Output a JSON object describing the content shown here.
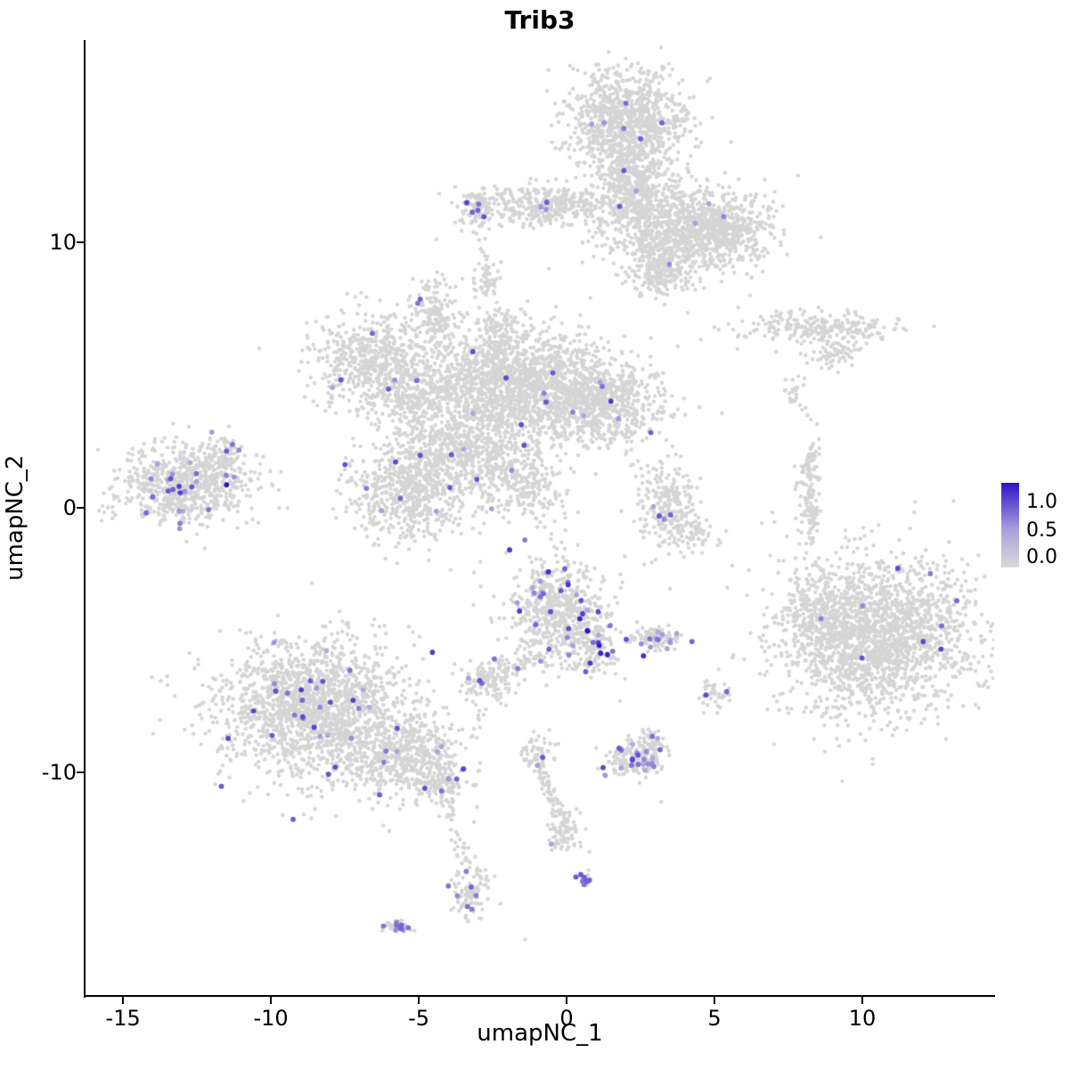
{
  "chart_data": {
    "type": "scatter",
    "title": "Trib3",
    "xlabel": "umapNC_1",
    "ylabel": "umapNC_2",
    "xlim": [
      -16.27,
      14.46
    ],
    "ylim": [
      -18.39,
      17.62
    ],
    "xticks": [
      -15,
      -10,
      -5,
      0,
      5,
      10
    ],
    "yticks": [
      -10,
      0,
      10
    ],
    "grid": false,
    "legend_position": "right",
    "background": "#ffffff",
    "axis_color": "#000000",
    "point": {
      "gray_color": "#d5d5d5",
      "gray_radius": 2.2,
      "expr_radius": 2.9
    },
    "colorscale": {
      "stops": [
        "#d9d9d9",
        "#a89fdc",
        "#2d13cc"
      ],
      "positions": [
        0,
        0.45,
        1
      ]
    },
    "legend": {
      "labels": [
        "1.0",
        "0.5",
        "0.0"
      ]
    },
    "seed": 42,
    "clusters": [
      {
        "name": "top-main",
        "n": 900,
        "cx": 2.0,
        "cy": 14.6,
        "sx": 1.05,
        "sy": 0.95,
        "ef": 0.006,
        "ehi": 0.9
      },
      {
        "name": "top-neck",
        "n": 450,
        "cx": 2.2,
        "cy": 12.3,
        "sx": 0.65,
        "sy": 0.9,
        "ef": 0.004
      },
      {
        "name": "top-right-arm",
        "n": 750,
        "cx": 3.8,
        "cy": 10.7,
        "sx": 1.25,
        "sy": 0.75,
        "ef": 0.004
      },
      {
        "name": "top-right-lobe",
        "n": 380,
        "cx": 5.4,
        "cy": 10.3,
        "sx": 0.8,
        "sy": 0.65,
        "ef": 0.003
      },
      {
        "name": "top-lower-lobe",
        "n": 280,
        "cx": 3.2,
        "cy": 9.0,
        "sx": 0.65,
        "sy": 0.55,
        "ef": 0.004
      },
      {
        "name": "top-left-arm",
        "n": 380,
        "cx": -0.8,
        "cy": 11.4,
        "sx": 1.2,
        "sy": 0.4,
        "ef": 0.008
      },
      {
        "name": "top-left-blob",
        "n": 80,
        "cx": -3.0,
        "cy": 11.3,
        "sx": 0.28,
        "sy": 0.38,
        "ef": 0.05,
        "ehi": 0.85
      },
      {
        "name": "small-mid-upper",
        "n": 55,
        "cx": -2.7,
        "cy": 8.5,
        "sx": 0.22,
        "sy": 0.4,
        "ef": 0
      },
      {
        "name": "center-left-lobe",
        "n": 500,
        "cx": -6.7,
        "cy": 5.6,
        "sx": 0.95,
        "sy": 0.85,
        "ef": 0.008
      },
      {
        "name": "center-up-arm",
        "n": 170,
        "cx": -4.5,
        "cy": 7.3,
        "sx": 0.4,
        "sy": 0.7,
        "ef": 0.012
      },
      {
        "name": "center-left2",
        "n": 330,
        "cx": -5.0,
        "cy": 4.2,
        "sx": 0.8,
        "sy": 0.8,
        "ef": 0.006
      },
      {
        "name": "center-a",
        "n": 850,
        "cx": -2.5,
        "cy": 4.7,
        "sx": 1.15,
        "sy": 1.05,
        "ef": 0.006
      },
      {
        "name": "center-b",
        "n": 850,
        "cx": -0.5,
        "cy": 4.5,
        "sx": 1.15,
        "sy": 1.0,
        "ef": 0.006
      },
      {
        "name": "center-right",
        "n": 550,
        "cx": 1.3,
        "cy": 3.9,
        "sx": 1.0,
        "sy": 0.8,
        "ef": 0.007
      },
      {
        "name": "center-lower-left",
        "n": 650,
        "cx": -5.3,
        "cy": 0.6,
        "sx": 1.0,
        "sy": 1.0,
        "ef": 0.012,
        "ehi": 0.85
      },
      {
        "name": "center-bridge",
        "n": 480,
        "cx": -3.3,
        "cy": 2.2,
        "sx": 1.1,
        "sy": 0.7,
        "ef": 0.006
      },
      {
        "name": "center-streak",
        "n": 240,
        "cx": -1.6,
        "cy": 0.7,
        "sx": 0.8,
        "sy": 0.6,
        "ef": 0.01
      },
      {
        "name": "center-top-nub",
        "n": 110,
        "cx": -2.2,
        "cy": 6.7,
        "sx": 0.4,
        "sy": 0.5,
        "ef": 0
      },
      {
        "name": "far-left",
        "n": 700,
        "cx": -12.9,
        "cy": 0.9,
        "sx": 1.15,
        "sy": 0.7,
        "ef": 0.035,
        "ehi": 0.85
      },
      {
        "name": "far-left-nub",
        "n": 60,
        "cx": -11.7,
        "cy": 2.0,
        "sx": 0.3,
        "sy": 0.35,
        "ef": 0.03
      },
      {
        "name": "mid-small",
        "n": 240,
        "cx": 3.4,
        "cy": 0.0,
        "sx": 0.5,
        "sy": 0.75,
        "ef": 0.012
      },
      {
        "name": "mid-small-tail",
        "n": 60,
        "cx": 4.2,
        "cy": -0.9,
        "sx": 0.4,
        "sy": 0.4,
        "ef": 0
      },
      {
        "name": "right-streak-1",
        "n": 240,
        "cx": 8.5,
        "cy": 6.8,
        "sx": 1.35,
        "sy": 0.32,
        "ef": 0
      },
      {
        "name": "right-streak-2",
        "n": 70,
        "cx": 9.0,
        "cy": 5.8,
        "sx": 0.5,
        "sy": 0.28,
        "ef": 0
      },
      {
        "name": "right-dots",
        "n": 26,
        "cx": 7.7,
        "cy": 4.4,
        "sx": 0.15,
        "sy": 0.3,
        "ef": 0
      },
      {
        "name": "right-vertical",
        "n": 150,
        "cx": 8.2,
        "cy": 0.4,
        "sx": 0.18,
        "sy": 1.25,
        "ef": 0
      },
      {
        "name": "big-right",
        "n": 2000,
        "cx": 10.5,
        "cy": -4.8,
        "sx": 1.65,
        "sy": 1.45,
        "ef": 0.003,
        "ehi": 0.85
      },
      {
        "name": "big-right-nub",
        "n": 150,
        "cx": 8.5,
        "cy": -4.0,
        "sx": 0.5,
        "sy": 0.8,
        "ef": 0.008
      },
      {
        "name": "center-bottom",
        "n": 600,
        "cx": -0.3,
        "cy": -3.9,
        "sx": 0.85,
        "sy": 0.95,
        "ef": 0.05,
        "ehi": 1.0
      },
      {
        "name": "center-bottom-tail",
        "n": 110,
        "cx": 0.9,
        "cy": -5.4,
        "sx": 0.4,
        "sy": 0.5,
        "ef": 0.09,
        "ehi": 1.0
      },
      {
        "name": "small-right-of-cb",
        "n": 90,
        "cx": 3.0,
        "cy": -4.9,
        "sx": 0.45,
        "sy": 0.25,
        "ef": 0.14,
        "ehi": 0.8
      },
      {
        "name": "small-left-of-cb",
        "n": 120,
        "cx": -2.6,
        "cy": -6.6,
        "sx": 0.45,
        "sy": 0.4,
        "ef": 0.025
      },
      {
        "name": "tiny-right",
        "n": 40,
        "cx": 5.0,
        "cy": -7.0,
        "sx": 0.25,
        "sy": 0.3,
        "ef": 0.04
      },
      {
        "name": "bottom-left-main",
        "n": 1700,
        "cx": -8.5,
        "cy": -7.5,
        "sx": 1.6,
        "sy": 1.3,
        "ef": 0.02,
        "ehi": 0.85
      },
      {
        "name": "bottom-left-ext",
        "n": 480,
        "cx": -5.6,
        "cy": -9.3,
        "sx": 1.0,
        "sy": 0.7,
        "ef": 0.015
      },
      {
        "name": "bottom-left-tail",
        "n": 140,
        "cx": -4.3,
        "cy": -10.3,
        "sx": 0.5,
        "sy": 0.4,
        "ef": 0.02
      },
      {
        "name": "bottom-purple",
        "n": 160,
        "cx": 2.4,
        "cy": -9.5,
        "sx": 0.5,
        "sy": 0.35,
        "ef": 0.14,
        "ehi": 0.85
      },
      {
        "name": "bottom-purple-nub",
        "n": 40,
        "cx": 2.9,
        "cy": -8.8,
        "sx": 0.25,
        "sy": 0.25,
        "ef": 0.05
      },
      {
        "name": "bone-top",
        "n": 55,
        "cx": -1.0,
        "cy": -9.3,
        "sx": 0.3,
        "sy": 0.3,
        "ef": 0.02
      },
      {
        "name": "bone-bottom",
        "n": 75,
        "cx": -0.1,
        "cy": -12.2,
        "sx": 0.3,
        "sy": 0.4,
        "ef": 0.01
      },
      {
        "name": "bottom-blob",
        "n": 95,
        "cx": -3.3,
        "cy": -14.5,
        "sx": 0.33,
        "sy": 0.55,
        "ef": 0.05,
        "elo": 0.5,
        "ehi": 0.7
      },
      {
        "name": "bottom-tiny-left",
        "n": 28,
        "cx": -5.7,
        "cy": -15.8,
        "sx": 0.26,
        "sy": 0.14,
        "ef": 0.3,
        "elo": 0.5,
        "ehi": 0.7
      },
      {
        "name": "bottom-tiny-purple",
        "n": 12,
        "cx": 0.6,
        "cy": -14.0,
        "sx": 0.1,
        "sy": 0.12,
        "ef": 0.6,
        "elo": 0.6,
        "ehi": 0.75
      }
    ],
    "lines": [
      {
        "name": "bone-link",
        "x1": -1.0,
        "y1": -9.6,
        "x2": -0.15,
        "y2": -11.8,
        "w": 0.12,
        "n": 60,
        "ef": 0.02
      },
      {
        "name": "tail-trail",
        "x1": -4.0,
        "y1": -11.0,
        "x2": -3.5,
        "y2": -13.3,
        "w": 0.1,
        "n": 28,
        "ef": 0
      },
      {
        "name": "cb-k-trail",
        "x1": -0.9,
        "y1": -5.6,
        "x2": -2.2,
        "y2": -6.3,
        "w": 0.14,
        "n": 45,
        "ef": 0.04
      },
      {
        "name": "k-down-trail",
        "x1": -2.9,
        "y1": -7.6,
        "x2": -3.3,
        "y2": -13.6,
        "w": 0.08,
        "n": 16,
        "ef": 0
      },
      {
        "name": "upper-trail",
        "x1": -2.95,
        "y1": 10.8,
        "x2": -2.75,
        "y2": 9.2,
        "w": 0.08,
        "n": 10,
        "ef": 0
      },
      {
        "name": "g-up-trail",
        "x1": 8.2,
        "y1": 1.6,
        "x2": 8.35,
        "y2": 2.6,
        "w": 0.07,
        "n": 12,
        "ef": 0
      }
    ],
    "singles": [
      [
        -10.4,
        6.0
      ],
      [
        6.2,
        8.0
      ],
      [
        5.6,
        -2.2
      ],
      [
        3.2,
        -11.1
      ],
      [
        1.8,
        -7.3
      ],
      [
        -6.2,
        -12.0
      ],
      [
        -6.0,
        -12.2
      ],
      [
        4.6,
        -1.4
      ],
      [
        6.6,
        -0.6
      ],
      [
        2.0,
        2.0
      ],
      [
        0.8,
        7.9
      ],
      [
        -0.6,
        9.0
      ],
      [
        12.9,
        -2.7
      ],
      [
        7.6,
        -7.6
      ],
      [
        -1.4,
        -16.3
      ]
    ],
    "extra_points": [
      {
        "x": -11.5,
        "y": 0.85,
        "v": 1.0
      },
      {
        "x": 0.7,
        "y": -4.65,
        "v": 1.0
      },
      {
        "x": 0.45,
        "y": -4.2,
        "v": 0.95
      },
      {
        "x": 1.5,
        "y": 4.0,
        "v": 0.85
      },
      {
        "x": 2.5,
        "y": 13.9,
        "v": 0.7
      },
      {
        "x": 11.2,
        "y": -2.3,
        "v": 0.8
      },
      {
        "x": 12.3,
        "y": -2.5,
        "v": 0.6
      },
      {
        "x": -3.35,
        "y": -15.05,
        "v": 0.65
      },
      {
        "x": -3.2,
        "y": -15.15,
        "v": 0.6
      },
      {
        "x": 0.6,
        "y": -13.95,
        "v": 0.7
      },
      {
        "x": 0.68,
        "y": -14.1,
        "v": 0.7
      },
      {
        "x": 3.3,
        "y": -0.45,
        "v": 0.55
      },
      {
        "x": -5.75,
        "y": -15.75,
        "v": 0.65
      },
      {
        "x": -5.6,
        "y": -15.85,
        "v": 0.6
      },
      {
        "x": -3.0,
        "y": 11.2,
        "v": 0.7
      },
      {
        "x": 2.6,
        "y": -5.6,
        "v": 0.9
      },
      {
        "x": 1.15,
        "y": -5.5,
        "v": 0.95
      }
    ]
  }
}
